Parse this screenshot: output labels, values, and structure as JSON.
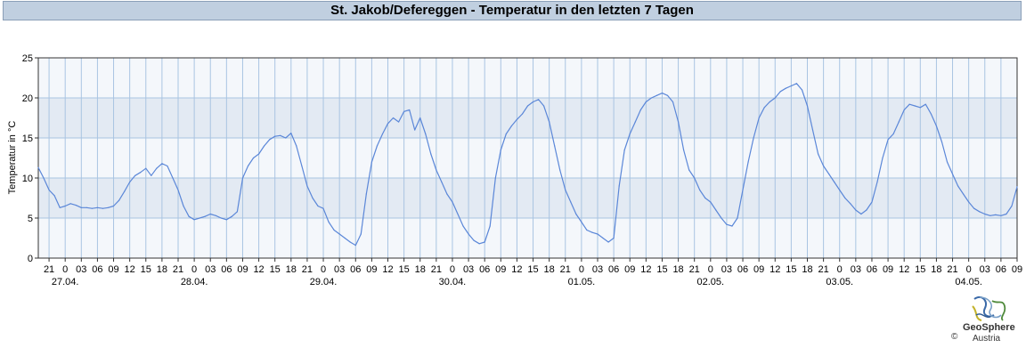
{
  "title": "St. Jakob/Defereggen - Temperatur in den letzten 7 Tagen",
  "branding": {
    "name": "GeoSphere",
    "sub": "Austria",
    "copyright": "©"
  },
  "chart_data": {
    "type": "line",
    "title": "St. Jakob/Defereggen - Temperatur in den letzten 7 Tagen",
    "ylabel": "Temperatur in °C",
    "xlabel": "",
    "ylim": [
      0,
      25
    ],
    "yticks": [
      0,
      5,
      10,
      15,
      20,
      25
    ],
    "grid": true,
    "bands": "alternating 5 °C bands",
    "hour_labels": [
      "21",
      "0",
      "03",
      "06",
      "09",
      "12",
      "15",
      "18",
      "21",
      "0",
      "03",
      "06",
      "09",
      "12",
      "15",
      "18",
      "21",
      "0",
      "03",
      "06",
      "09",
      "12",
      "15",
      "18",
      "21",
      "0",
      "03",
      "06",
      "09",
      "12",
      "15",
      "18",
      "21",
      "0",
      "03",
      "06",
      "09",
      "12",
      "15",
      "18",
      "21",
      "0",
      "03",
      "06",
      "09",
      "12",
      "15",
      "18",
      "21",
      "0",
      "03",
      "06",
      "09",
      "12",
      "15",
      "18",
      "21",
      "0",
      "03",
      "06",
      "09",
      "12",
      "15",
      "18",
      "21",
      "0",
      "03",
      "06",
      "09"
    ],
    "day_labels": [
      "27.04.",
      "28.04.",
      "29.04.",
      "30.04.",
      "01.05.",
      "02.05.",
      "03.05.",
      "04.05."
    ],
    "x_range": [
      "26.04. 19:00",
      "04.05. 09:00"
    ],
    "series": [
      {
        "name": "",
        "color": "#5b87d8",
        "points": [
          [
            "26.04. 19:00",
            11.3
          ],
          [
            "26.04. 20:00",
            10.0
          ],
          [
            "26.04. 21:00",
            8.5
          ],
          [
            "26.04. 22:00",
            7.8
          ],
          [
            "26.04. 23:00",
            6.3
          ],
          [
            "27.04. 00:00",
            6.5
          ],
          [
            "27.04. 01:00",
            6.8
          ],
          [
            "27.04. 02:00",
            6.6
          ],
          [
            "27.04. 03:00",
            6.3
          ],
          [
            "27.04. 04:00",
            6.3
          ],
          [
            "27.04. 05:00",
            6.2
          ],
          [
            "27.04. 06:00",
            6.3
          ],
          [
            "27.04. 07:00",
            6.2
          ],
          [
            "27.04. 08:00",
            6.3
          ],
          [
            "27.04. 09:00",
            6.5
          ],
          [
            "27.04. 10:00",
            7.2
          ],
          [
            "27.04. 11:00",
            8.3
          ],
          [
            "27.04. 12:00",
            9.5
          ],
          [
            "27.04. 13:00",
            10.3
          ],
          [
            "27.04. 14:00",
            10.7
          ],
          [
            "27.04. 15:00",
            11.2
          ],
          [
            "27.04. 16:00",
            10.3
          ],
          [
            "27.04. 17:00",
            11.2
          ],
          [
            "27.04. 18:00",
            11.8
          ],
          [
            "27.04. 19:00",
            11.5
          ],
          [
            "27.04. 20:00",
            10.0
          ],
          [
            "27.04. 21:00",
            8.5
          ],
          [
            "27.04. 22:00",
            6.5
          ],
          [
            "27.04. 23:00",
            5.2
          ],
          [
            "28.04. 00:00",
            4.8
          ],
          [
            "28.04. 01:00",
            5.0
          ],
          [
            "28.04. 02:00",
            5.2
          ],
          [
            "28.04. 03:00",
            5.5
          ],
          [
            "28.04. 04:00",
            5.3
          ],
          [
            "28.04. 05:00",
            5.0
          ],
          [
            "28.04. 06:00",
            4.8
          ],
          [
            "28.04. 07:00",
            5.2
          ],
          [
            "28.04. 08:00",
            5.8
          ],
          [
            "28.04. 09:00",
            10.0
          ],
          [
            "28.04. 10:00",
            11.5
          ],
          [
            "28.04. 11:00",
            12.5
          ],
          [
            "28.04. 12:00",
            13.0
          ],
          [
            "28.04. 13:00",
            14.0
          ],
          [
            "28.04. 14:00",
            14.8
          ],
          [
            "28.04. 15:00",
            15.2
          ],
          [
            "28.04. 16:00",
            15.3
          ],
          [
            "28.04. 17:00",
            15.0
          ],
          [
            "28.04. 18:00",
            15.6
          ],
          [
            "28.04. 19:00",
            14.0
          ],
          [
            "28.04. 20:00",
            11.5
          ],
          [
            "28.04. 21:00",
            9.0
          ],
          [
            "28.04. 22:00",
            7.5
          ],
          [
            "28.04. 23:00",
            6.5
          ],
          [
            "29.04. 00:00",
            6.2
          ],
          [
            "29.04. 01:00",
            4.5
          ],
          [
            "29.04. 02:00",
            3.5
          ],
          [
            "29.04. 03:00",
            3.0
          ],
          [
            "29.04. 04:00",
            2.5
          ],
          [
            "29.04. 05:00",
            2.0
          ],
          [
            "29.04. 06:00",
            1.6
          ],
          [
            "29.04. 07:00",
            3.0
          ],
          [
            "29.04. 08:00",
            8.0
          ],
          [
            "29.04. 09:00",
            12.0
          ],
          [
            "29.04. 10:00",
            14.0
          ],
          [
            "29.04. 11:00",
            15.5
          ],
          [
            "29.04. 12:00",
            16.8
          ],
          [
            "29.04. 13:00",
            17.5
          ],
          [
            "29.04. 14:00",
            17.0
          ],
          [
            "29.04. 15:00",
            18.3
          ],
          [
            "29.04. 16:00",
            18.5
          ],
          [
            "29.04. 17:00",
            16.0
          ],
          [
            "29.04. 18:00",
            17.5
          ],
          [
            "29.04. 19:00",
            15.5
          ],
          [
            "29.04. 20:00",
            13.0
          ],
          [
            "29.04. 21:00",
            11.0
          ],
          [
            "29.04. 22:00",
            9.5
          ],
          [
            "29.04. 23:00",
            8.0
          ],
          [
            "30.04. 00:00",
            7.0
          ],
          [
            "30.04. 01:00",
            5.5
          ],
          [
            "30.04. 02:00",
            4.0
          ],
          [
            "30.04. 03:00",
            3.0
          ],
          [
            "30.04. 04:00",
            2.2
          ],
          [
            "30.04. 05:00",
            1.8
          ],
          [
            "30.04. 06:00",
            2.0
          ],
          [
            "30.04. 07:00",
            4.0
          ],
          [
            "30.04. 08:00",
            10.0
          ],
          [
            "30.04. 09:00",
            13.5
          ],
          [
            "30.04. 10:00",
            15.5
          ],
          [
            "30.04. 11:00",
            16.5
          ],
          [
            "30.04. 12:00",
            17.3
          ],
          [
            "30.04. 13:00",
            18.0
          ],
          [
            "30.04. 14:00",
            19.0
          ],
          [
            "30.04. 15:00",
            19.5
          ],
          [
            "30.04. 16:00",
            19.8
          ],
          [
            "30.04. 17:00",
            19.0
          ],
          [
            "30.04. 18:00",
            17.0
          ],
          [
            "30.04. 19:00",
            14.0
          ],
          [
            "30.04. 20:00",
            11.0
          ],
          [
            "30.04. 21:00",
            8.5
          ],
          [
            "30.04. 22:00",
            7.0
          ],
          [
            "30.04. 23:00",
            5.5
          ],
          [
            "01.05. 00:00",
            4.5
          ],
          [
            "01.05. 01:00",
            3.5
          ],
          [
            "01.05. 02:00",
            3.2
          ],
          [
            "01.05. 03:00",
            3.0
          ],
          [
            "01.05. 04:00",
            2.5
          ],
          [
            "01.05. 05:00",
            2.0
          ],
          [
            "01.05. 06:00",
            2.5
          ],
          [
            "01.05. 07:00",
            9.0
          ],
          [
            "01.05. 08:00",
            13.5
          ],
          [
            "01.05. 09:00",
            15.5
          ],
          [
            "01.05. 10:00",
            17.0
          ],
          [
            "01.05. 11:00",
            18.5
          ],
          [
            "01.05. 12:00",
            19.5
          ],
          [
            "01.05. 13:00",
            20.0
          ],
          [
            "01.05. 14:00",
            20.3
          ],
          [
            "01.05. 15:00",
            20.6
          ],
          [
            "01.05. 16:00",
            20.3
          ],
          [
            "01.05. 17:00",
            19.5
          ],
          [
            "01.05. 18:00",
            17.0
          ],
          [
            "01.05. 19:00",
            13.5
          ],
          [
            "01.05. 20:00",
            11.0
          ],
          [
            "01.05. 21:00",
            10.0
          ],
          [
            "01.05. 22:00",
            8.5
          ],
          [
            "01.05. 23:00",
            7.5
          ],
          [
            "02.05. 00:00",
            7.0
          ],
          [
            "02.05. 01:00",
            6.0
          ],
          [
            "02.05. 02:00",
            5.0
          ],
          [
            "02.05. 03:00",
            4.2
          ],
          [
            "02.05. 04:00",
            4.0
          ],
          [
            "02.05. 05:00",
            5.0
          ],
          [
            "02.05. 06:00",
            8.5
          ],
          [
            "02.05. 07:00",
            12.0
          ],
          [
            "02.05. 08:00",
            15.0
          ],
          [
            "02.05. 09:00",
            17.5
          ],
          [
            "02.05. 10:00",
            18.8
          ],
          [
            "02.05. 11:00",
            19.5
          ],
          [
            "02.05. 12:00",
            20.0
          ],
          [
            "02.05. 13:00",
            20.8
          ],
          [
            "02.05. 14:00",
            21.2
          ],
          [
            "02.05. 15:00",
            21.5
          ],
          [
            "02.05. 16:00",
            21.8
          ],
          [
            "02.05. 17:00",
            21.0
          ],
          [
            "02.05. 18:00",
            19.0
          ],
          [
            "02.05. 19:00",
            16.0
          ],
          [
            "02.05. 20:00",
            13.0
          ],
          [
            "02.05. 21:00",
            11.5
          ],
          [
            "02.05. 22:00",
            10.5
          ],
          [
            "02.05. 23:00",
            9.5
          ],
          [
            "03.05. 00:00",
            8.5
          ],
          [
            "03.05. 01:00",
            7.5
          ],
          [
            "03.05. 02:00",
            6.8
          ],
          [
            "03.05. 03:00",
            6.0
          ],
          [
            "03.05. 04:00",
            5.5
          ],
          [
            "03.05. 05:00",
            6.0
          ],
          [
            "03.05. 06:00",
            7.0
          ],
          [
            "03.05. 07:00",
            9.5
          ],
          [
            "03.05. 08:00",
            12.5
          ],
          [
            "03.05. 09:00",
            14.8
          ],
          [
            "03.05. 10:00",
            15.5
          ],
          [
            "03.05. 11:00",
            17.0
          ],
          [
            "03.05. 12:00",
            18.5
          ],
          [
            "03.05. 13:00",
            19.2
          ],
          [
            "03.05. 14:00",
            19.0
          ],
          [
            "03.05. 15:00",
            18.8
          ],
          [
            "03.05. 16:00",
            19.2
          ],
          [
            "03.05. 17:00",
            18.0
          ],
          [
            "03.05. 18:00",
            16.5
          ],
          [
            "03.05. 19:00",
            14.5
          ],
          [
            "03.05. 20:00",
            12.0
          ],
          [
            "03.05. 21:00",
            10.5
          ],
          [
            "03.05. 22:00",
            9.0
          ],
          [
            "03.05. 23:00",
            8.0
          ],
          [
            "04.05. 00:00",
            7.0
          ],
          [
            "04.05. 01:00",
            6.2
          ],
          [
            "04.05. 02:00",
            5.8
          ],
          [
            "04.05. 03:00",
            5.5
          ],
          [
            "04.05. 04:00",
            5.3
          ],
          [
            "04.05. 05:00",
            5.4
          ],
          [
            "04.05. 06:00",
            5.3
          ],
          [
            "04.05. 07:00",
            5.5
          ],
          [
            "04.05. 08:00",
            6.5
          ],
          [
            "04.05. 09:00",
            8.9
          ]
        ]
      }
    ]
  }
}
